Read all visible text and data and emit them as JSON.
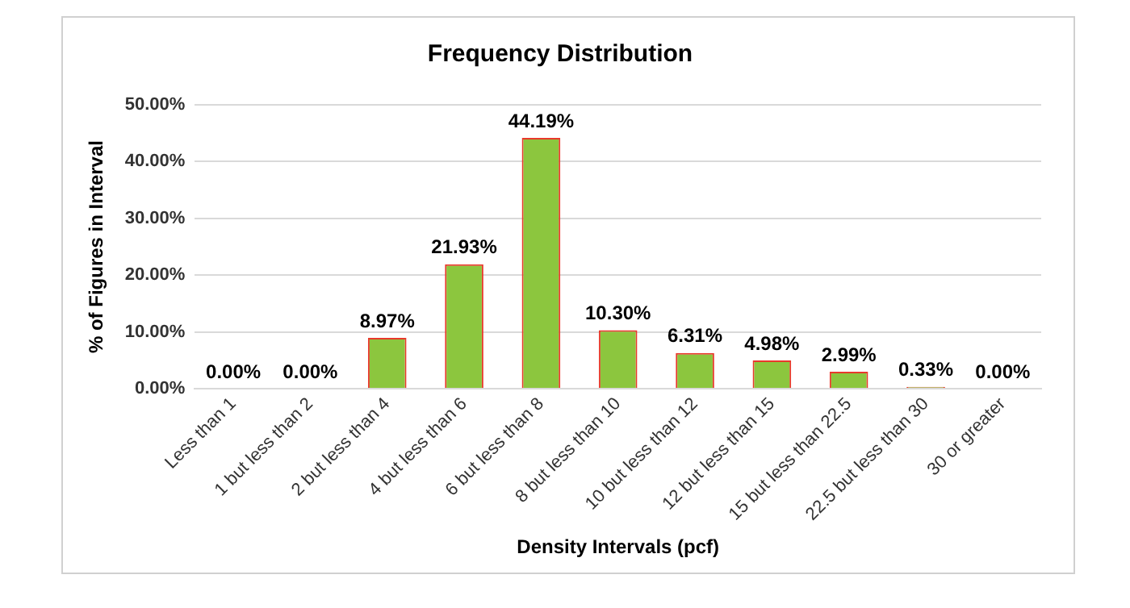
{
  "chart_data": {
    "type": "bar",
    "title": "Frequency Distribution",
    "xlabel": "Density Intervals (pcf)",
    "ylabel": "% of Figures in Interval",
    "categories": [
      "Less than 1",
      "1 but less than 2",
      "2 but less than 4",
      "4 but less than 6",
      "6 but less than 8",
      "8 but less than 10",
      "10 but less than 12",
      "12 but less than 15",
      "15 but less than 22.5",
      "22.5 but less than 30",
      "30 or greater"
    ],
    "values": [
      0,
      0,
      8.97,
      21.93,
      44.19,
      10.3,
      6.31,
      4.98,
      2.99,
      0.33,
      0
    ],
    "value_labels": [
      "0.00%",
      "0.00%",
      "8.97%",
      "21.93%",
      "44.19%",
      "10.30%",
      "6.31%",
      "4.98%",
      "2.99%",
      "0.33%",
      "0.00%"
    ],
    "color": "#8cc63e",
    "ylim": [
      0,
      50
    ],
    "yticks": [
      {
        "value": 0,
        "label": "0.00%"
      },
      {
        "value": 10,
        "label": "10.00%"
      },
      {
        "value": 20,
        "label": "20.00%"
      },
      {
        "value": 30,
        "label": "30.00%"
      },
      {
        "value": 40,
        "label": "40.00%"
      },
      {
        "value": 50,
        "label": "50.00%"
      }
    ],
    "grid": "y",
    "legend": false
  }
}
